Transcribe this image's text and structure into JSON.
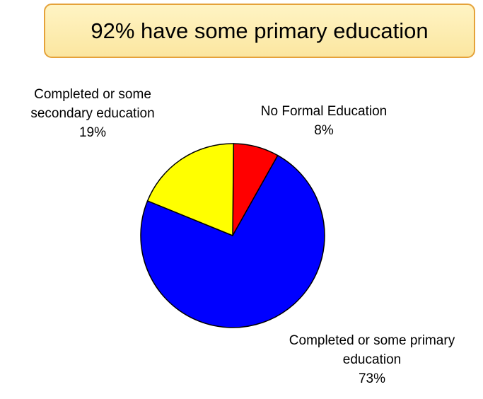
{
  "banner": {
    "text": "92% have some primary education"
  },
  "chart_data": {
    "type": "pie",
    "title": "92% have some primary education",
    "slices": [
      {
        "label": "No Formal Education",
        "value": 8,
        "display": "8%",
        "color": "#ff0000"
      },
      {
        "label": "Completed or some primary education",
        "value": 73,
        "display": "73%",
        "color": "#0000ff"
      },
      {
        "label": "Completed or some secondary education",
        "value": 19,
        "display": "19%",
        "color": "#ffff00"
      }
    ],
    "label_lines": [
      [
        "No Formal Education"
      ],
      [
        "Completed or some primary",
        "education"
      ],
      [
        "Completed or some",
        "secondary education"
      ]
    ]
  }
}
